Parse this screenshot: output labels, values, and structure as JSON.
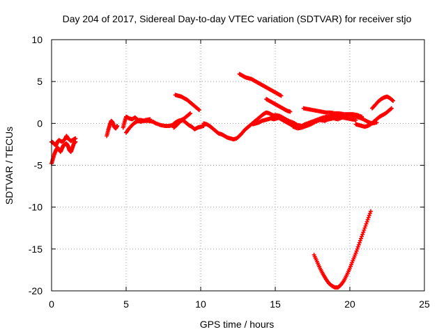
{
  "chart_data": {
    "type": "scatter",
    "title": "Day 204 of 2017, Sidereal Day-to-day VTEC variation (SDTVAR) for receiver stjo",
    "xlabel": "GPS time / hours",
    "ylabel": "SDTVAR / TECUs",
    "xlim": [
      0,
      25
    ],
    "ylim": [
      -20,
      10
    ],
    "xticks": [
      0,
      5,
      10,
      15,
      20,
      25
    ],
    "yticks": [
      -20,
      -15,
      -10,
      -5,
      0,
      5,
      10
    ],
    "grid": true,
    "marker": "plus",
    "colors": {
      "series": "#ff0000",
      "grid": "#a0a0a0",
      "axes": "#000000"
    },
    "series": [
      {
        "segments": [
          [
            [
              0.0,
              -4.8
            ],
            [
              0.1,
              -4.2
            ],
            [
              0.2,
              -3.6
            ],
            [
              0.3,
              -3.2
            ],
            [
              0.4,
              -2.9
            ],
            [
              0.5,
              -3.1
            ],
            [
              0.6,
              -3.4
            ],
            [
              0.7,
              -3.0
            ],
            [
              0.8,
              -2.6
            ],
            [
              0.9,
              -2.5
            ],
            [
              1.0,
              -2.4
            ],
            [
              1.1,
              -2.7
            ],
            [
              1.2,
              -3.2
            ],
            [
              1.3,
              -3.4
            ],
            [
              1.4,
              -2.9
            ],
            [
              1.5,
              -2.4
            ],
            [
              1.6,
              -2.2
            ]
          ],
          [
            [
              0.0,
              -2.2
            ],
            [
              0.1,
              -2.3
            ],
            [
              0.2,
              -2.5
            ],
            [
              0.3,
              -2.6
            ],
            [
              0.4,
              -2.2
            ],
            [
              0.5,
              -2.0
            ],
            [
              0.7,
              -2.2
            ],
            [
              0.9,
              -1.9
            ],
            [
              1.0,
              -1.5
            ],
            [
              1.1,
              -1.8
            ],
            [
              1.3,
              -2.1
            ],
            [
              1.5,
              -1.9
            ],
            [
              1.6,
              -1.8
            ]
          ],
          [
            [
              3.7,
              -1.5
            ],
            [
              3.8,
              -0.8
            ],
            [
              3.9,
              -0.2
            ],
            [
              4.0,
              0.3
            ],
            [
              4.1,
              0.1
            ],
            [
              4.2,
              -0.4
            ],
            [
              4.3,
              -0.6
            ],
            [
              4.4,
              -0.3
            ]
          ],
          [
            [
              4.8,
              -0.5
            ],
            [
              4.9,
              0.2
            ],
            [
              5.0,
              0.8
            ],
            [
              5.2,
              0.6
            ],
            [
              5.4,
              0.5
            ],
            [
              5.6,
              0.7
            ],
            [
              5.8,
              0.4
            ],
            [
              6.0,
              0.4
            ],
            [
              6.2,
              0.3
            ],
            [
              6.5,
              0.3
            ],
            [
              6.8,
              0.2
            ],
            [
              7.0,
              0.0
            ],
            [
              7.3,
              -0.2
            ],
            [
              7.6,
              -0.3
            ],
            [
              7.9,
              -0.3
            ],
            [
              8.1,
              -0.2
            ],
            [
              8.3,
              0.1
            ],
            [
              8.5,
              0.3
            ],
            [
              8.7,
              0.4
            ],
            [
              8.9,
              0.6
            ],
            [
              9.1,
              0.9
            ],
            [
              9.3,
              1.2
            ]
          ],
          [
            [
              5.0,
              -1.1
            ],
            [
              5.2,
              -0.6
            ],
            [
              5.4,
              -0.2
            ],
            [
              5.6,
              0.1
            ],
            [
              5.8,
              0.3
            ],
            [
              6.0,
              0.2
            ],
            [
              6.3,
              0.4
            ],
            [
              6.6,
              0.5
            ]
          ],
          [
            [
              8.2,
              -0.5
            ],
            [
              8.4,
              -0.2
            ],
            [
              8.6,
              0.2
            ],
            [
              8.8,
              0.4
            ],
            [
              9.0,
              0.1
            ],
            [
              9.2,
              -0.2
            ],
            [
              9.4,
              -0.4
            ],
            [
              9.6,
              -0.7
            ],
            [
              9.8,
              -0.5
            ],
            [
              10.0,
              -0.4
            ],
            [
              10.2,
              -0.3
            ]
          ],
          [
            [
              8.3,
              3.4
            ],
            [
              8.5,
              3.3
            ],
            [
              8.7,
              3.2
            ],
            [
              8.9,
              3.0
            ],
            [
              9.1,
              2.8
            ],
            [
              9.3,
              2.5
            ],
            [
              9.5,
              2.2
            ],
            [
              9.7,
              1.9
            ],
            [
              9.9,
              1.6
            ]
          ],
          [
            [
              10.2,
              0.0
            ],
            [
              10.4,
              -0.1
            ],
            [
              10.6,
              -0.3
            ],
            [
              10.8,
              -0.6
            ],
            [
              11.0,
              -0.9
            ],
            [
              11.2,
              -1.2
            ],
            [
              11.4,
              -1.3
            ],
            [
              11.6,
              -1.5
            ],
            [
              11.8,
              -1.7
            ],
            [
              12.0,
              -1.8
            ],
            [
              12.2,
              -1.9
            ],
            [
              12.4,
              -1.8
            ],
            [
              12.6,
              -1.5
            ],
            [
              12.8,
              -1.1
            ],
            [
              13.0,
              -0.7
            ],
            [
              13.2,
              -0.4
            ],
            [
              13.4,
              -0.1
            ],
            [
              13.6,
              0.2
            ],
            [
              13.8,
              0.5
            ],
            [
              14.0,
              0.8
            ],
            [
              14.2,
              1.1
            ],
            [
              14.4,
              1.3
            ],
            [
              14.6,
              1.2
            ],
            [
              14.8,
              1.0
            ],
            [
              15.0,
              0.9
            ],
            [
              15.2,
              0.7
            ],
            [
              15.4,
              0.5
            ],
            [
              15.6,
              0.3
            ],
            [
              15.8,
              0.1
            ],
            [
              16.0,
              -0.1
            ],
            [
              16.2,
              -0.3
            ],
            [
              16.4,
              -0.4
            ]
          ],
          [
            [
              13.5,
              -0.1
            ],
            [
              13.7,
              0.0
            ],
            [
              13.9,
              0.1
            ],
            [
              14.1,
              0.3
            ],
            [
              14.3,
              0.4
            ],
            [
              14.5,
              0.5
            ],
            [
              14.7,
              0.6
            ],
            [
              14.9,
              0.5
            ],
            [
              15.1,
              0.6
            ],
            [
              15.3,
              0.7
            ],
            [
              15.5,
              0.6
            ],
            [
              15.7,
              0.4
            ],
            [
              15.9,
              0.3
            ]
          ],
          [
            [
              12.6,
              5.9
            ],
            [
              12.8,
              5.7
            ],
            [
              13.0,
              5.5
            ],
            [
              13.2,
              5.4
            ],
            [
              13.4,
              5.3
            ],
            [
              13.6,
              5.1
            ],
            [
              13.8,
              4.9
            ],
            [
              14.0,
              4.7
            ],
            [
              14.2,
              4.5
            ],
            [
              14.4,
              4.3
            ],
            [
              14.6,
              4.1
            ],
            [
              14.8,
              3.9
            ],
            [
              15.0,
              3.7
            ],
            [
              15.2,
              3.5
            ],
            [
              15.4,
              3.3
            ]
          ],
          [
            [
              14.4,
              2.9
            ],
            [
              14.6,
              2.7
            ],
            [
              14.8,
              2.5
            ],
            [
              15.0,
              2.3
            ],
            [
              15.2,
              2.1
            ],
            [
              15.4,
              1.9
            ],
            [
              15.6,
              1.7
            ],
            [
              15.8,
              1.5
            ],
            [
              16.0,
              1.4
            ]
          ],
          [
            [
              15.0,
              1.0
            ],
            [
              15.3,
              0.9
            ],
            [
              15.6,
              0.6
            ],
            [
              15.9,
              0.3
            ],
            [
              16.2,
              0.1
            ],
            [
              16.5,
              -0.2
            ],
            [
              16.8,
              -0.3
            ],
            [
              17.0,
              -0.1
            ],
            [
              17.3,
              0.1
            ],
            [
              17.6,
              0.3
            ],
            [
              17.9,
              0.5
            ],
            [
              18.2,
              0.7
            ],
            [
              18.5,
              0.8
            ],
            [
              18.8,
              0.9
            ],
            [
              19.1,
              0.9
            ],
            [
              19.4,
              0.8
            ],
            [
              19.7,
              0.9
            ],
            [
              20.0,
              1.0
            ],
            [
              20.3,
              0.9
            ],
            [
              20.6,
              0.7
            ],
            [
              20.9,
              0.5
            ],
            [
              21.2,
              0.2
            ],
            [
              21.5,
              0.0
            ],
            [
              21.8,
              0.1
            ]
          ],
          [
            [
              16.2,
              -0.4
            ],
            [
              16.5,
              -0.6
            ],
            [
              16.8,
              -0.5
            ],
            [
              17.1,
              -0.3
            ],
            [
              17.4,
              -0.1
            ],
            [
              17.7,
              0.2
            ],
            [
              18.0,
              0.4
            ],
            [
              18.3,
              0.3
            ],
            [
              18.6,
              0.5
            ],
            [
              18.9,
              0.6
            ],
            [
              19.2,
              0.5
            ],
            [
              19.5,
              0.7
            ],
            [
              19.8,
              0.6
            ],
            [
              20.1,
              0.5
            ],
            [
              20.4,
              0.4
            ]
          ],
          [
            [
              16.9,
              1.8
            ],
            [
              17.2,
              1.7
            ],
            [
              17.5,
              1.6
            ],
            [
              17.8,
              1.5
            ],
            [
              18.1,
              1.4
            ],
            [
              18.4,
              1.3
            ],
            [
              18.7,
              1.3
            ],
            [
              19.0,
              1.2
            ],
            [
              19.3,
              1.2
            ],
            [
              19.6,
              1.1
            ],
            [
              19.9,
              1.1
            ],
            [
              20.2,
              1.1
            ],
            [
              20.5,
              1.0
            ],
            [
              20.8,
              0.8
            ]
          ],
          [
            [
              20.4,
              -0.1
            ],
            [
              20.6,
              -0.2
            ],
            [
              20.8,
              -0.3
            ],
            [
              21.0,
              -0.4
            ],
            [
              21.2,
              -0.3
            ],
            [
              21.4,
              -0.1
            ],
            [
              21.6,
              0.2
            ],
            [
              21.8,
              0.5
            ],
            [
              22.0,
              0.8
            ],
            [
              22.2,
              1.0
            ],
            [
              22.4,
              1.2
            ],
            [
              22.6,
              1.5
            ],
            [
              22.8,
              1.8
            ]
          ],
          [
            [
              21.5,
              1.8
            ],
            [
              21.7,
              2.2
            ],
            [
              21.9,
              2.6
            ],
            [
              22.1,
              2.9
            ],
            [
              22.3,
              3.1
            ],
            [
              22.5,
              3.2
            ],
            [
              22.7,
              3.0
            ],
            [
              22.9,
              2.7
            ]
          ],
          [
            [
              17.6,
              -15.7
            ],
            [
              17.8,
              -16.5
            ],
            [
              18.0,
              -17.3
            ],
            [
              18.2,
              -18.0
            ],
            [
              18.4,
              -18.6
            ],
            [
              18.6,
              -19.1
            ],
            [
              18.8,
              -19.4
            ],
            [
              19.0,
              -19.6
            ],
            [
              19.2,
              -19.6
            ],
            [
              19.4,
              -19.3
            ],
            [
              19.6,
              -18.8
            ],
            [
              19.8,
              -18.1
            ],
            [
              20.0,
              -17.3
            ],
            [
              20.2,
              -16.4
            ],
            [
              20.4,
              -15.5
            ],
            [
              20.6,
              -14.5
            ],
            [
              20.8,
              -13.5
            ],
            [
              21.0,
              -12.5
            ],
            [
              21.2,
              -11.5
            ],
            [
              21.4,
              -10.5
            ]
          ]
        ]
      }
    ]
  }
}
